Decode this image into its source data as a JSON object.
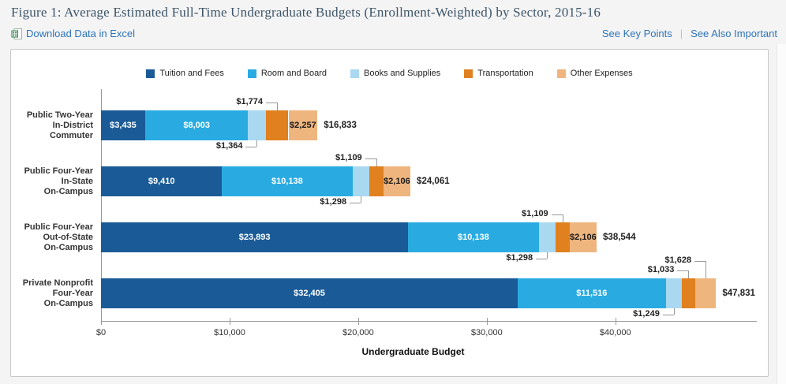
{
  "header": {
    "title": "Figure 1: Average Estimated Full-Time Undergraduate Budgets (Enrollment-Weighted) by Sector, 2015-16",
    "download_link": "Download Data in Excel",
    "key_points_link": "See Key Points",
    "also_important_link": "See Also Important",
    "link_divider": "|"
  },
  "chart_data": {
    "type": "bar",
    "orientation": "horizontal",
    "stacked": true,
    "title": "",
    "xlabel": "Undergraduate Budget",
    "xlim": [
      0,
      51000
    ],
    "grid": false,
    "legend_position": "top",
    "x_ticks": [
      {
        "value": 0,
        "label": "$0"
      },
      {
        "value": 10000,
        "label": "$10,000"
      },
      {
        "value": 20000,
        "label": "$20,000"
      },
      {
        "value": 30000,
        "label": "$30,000"
      },
      {
        "value": 40000,
        "label": "$40,000"
      }
    ],
    "series": [
      {
        "name": "Tuition and Fees",
        "color": "#1A5B97",
        "label_color": "#FFFFFF",
        "values": [
          3435,
          9410,
          23893,
          32405
        ]
      },
      {
        "name": "Room and Board",
        "color": "#29ABE2",
        "label_color": "#FFFFFF",
        "values": [
          8003,
          10138,
          10138,
          11516
        ]
      },
      {
        "name": "Books and Supplies",
        "color": "#A9D8F1",
        "label_color": "#1A1A1A",
        "values": [
          1364,
          1298,
          1298,
          1249
        ]
      },
      {
        "name": "Transportation",
        "color": "#E0801F",
        "label_color": "#1A1A1A",
        "values": [
          1774,
          1109,
          1109,
          1033
        ]
      },
      {
        "name": "Other Expenses",
        "color": "#EFB57E",
        "label_color": "#1A1A1A",
        "values": [
          2257,
          2106,
          2106,
          1628
        ]
      }
    ],
    "categories": [
      {
        "label_lines": [
          "Public Two-Year",
          "In-District",
          "Commuter"
        ],
        "segment_labels": [
          "$3,435",
          "$8,003",
          "$1,364",
          "$1,774",
          "$2,257"
        ],
        "label_placement": [
          "inside",
          "inside",
          "callout-below",
          "callout-above",
          "inside"
        ],
        "total": 16833,
        "total_label": "$16,833"
      },
      {
        "label_lines": [
          "Public Four-Year",
          "In-State",
          "On-Campus"
        ],
        "segment_labels": [
          "$9,410",
          "$10,138",
          "$1,298",
          "$1,109",
          "$2,106"
        ],
        "label_placement": [
          "inside",
          "inside",
          "callout-below",
          "callout-above",
          "inside"
        ],
        "total": 24061,
        "total_label": "$24,061"
      },
      {
        "label_lines": [
          "Public Four-Year",
          "Out-of-State",
          "On-Campus"
        ],
        "segment_labels": [
          "$23,893",
          "$10,138",
          "$1,298",
          "$1,109",
          "$2,106"
        ],
        "label_placement": [
          "inside",
          "inside",
          "callout-below",
          "callout-above",
          "inside"
        ],
        "total": 38544,
        "total_label": "$38,544"
      },
      {
        "label_lines": [
          "Private Nonprofit",
          "Four-Year",
          "On-Campus"
        ],
        "segment_labels": [
          "$32,405",
          "$11,516",
          "$1,249",
          "$1,033",
          "$1,628"
        ],
        "label_placement": [
          "inside",
          "inside",
          "callout-below",
          "callout-above",
          "callout-above"
        ],
        "total": 47831,
        "total_label": "$47,831"
      }
    ]
  }
}
